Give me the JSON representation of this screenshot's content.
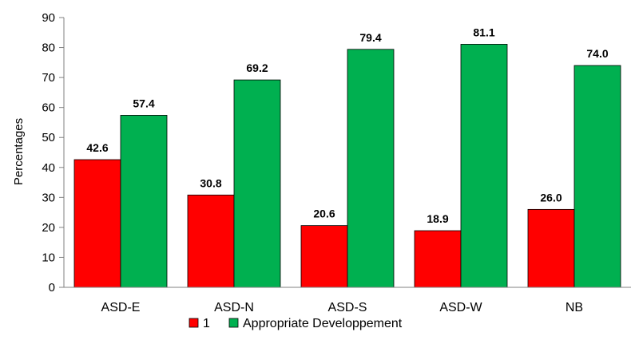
{
  "chart_data": {
    "type": "bar",
    "categories": [
      "ASD-E",
      "ASD-N",
      "ASD-S",
      "ASD-W",
      "NB"
    ],
    "series": [
      {
        "name": "1",
        "color": "#ff0000",
        "values": [
          42.6,
          30.8,
          20.6,
          18.9,
          26.0
        ]
      },
      {
        "name": "Appropriate Developpement",
        "color": "#00b050",
        "values": [
          57.4,
          69.2,
          79.4,
          81.1,
          74.0
        ]
      }
    ],
    "data_labels": [
      [
        "42.6",
        "30.8",
        "20.6",
        "18.9",
        "26.0"
      ],
      [
        "57.4",
        "69.2",
        "79.4",
        "81.1",
        "74.0"
      ]
    ],
    "ylabel": "Percentages",
    "xlabel": "",
    "ylim": [
      0,
      90
    ],
    "yticks": [
      0,
      10,
      20,
      30,
      40,
      50,
      60,
      70,
      80,
      90
    ],
    "grid": false,
    "legend_position": "bottom"
  }
}
